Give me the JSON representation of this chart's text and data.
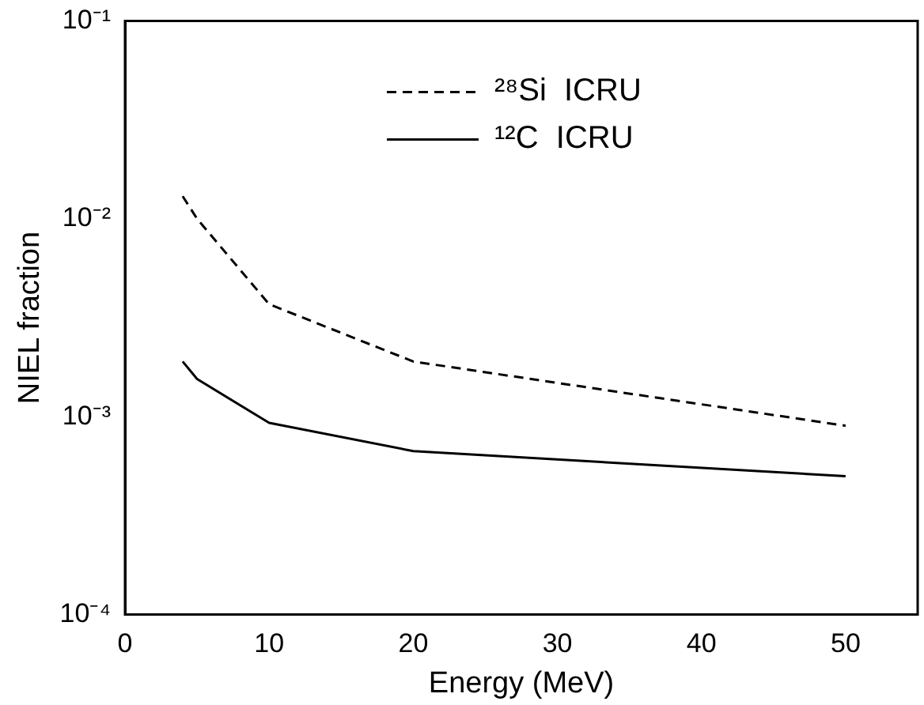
{
  "chart_data": {
    "type": "line",
    "xlabel": "Energy (MeV)",
    "ylabel": "NIEL fraction",
    "series": [
      {
        "name": "²⁸Si  ICRU",
        "color": "#000000",
        "line_style": "dashed",
        "x": [
          4,
          5,
          10,
          20,
          50
        ],
        "values": [
          0.013,
          0.01,
          0.0037,
          0.0019,
          0.0009
        ]
      },
      {
        "name": "¹²C  ICRU",
        "color": "#000000",
        "line_style": "solid",
        "x": [
          4,
          5,
          10,
          20,
          50
        ],
        "values": [
          0.0019,
          0.00155,
          0.00093,
          0.00067,
          0.0005
        ]
      }
    ],
    "xlim": [
      0,
      55
    ],
    "xticks": [
      0,
      10,
      20,
      30,
      40,
      50
    ],
    "ylim": [
      0.0001,
      0.1
    ],
    "yticks": [
      {
        "value": 0.0001,
        "label": "10⁻⁴"
      },
      {
        "value": 0.001,
        "label": "10⁻³"
      },
      {
        "value": 0.01,
        "label": "10⁻²"
      },
      {
        "value": 0.1,
        "label": "10⁻¹"
      }
    ],
    "log": "y",
    "grid": false,
    "legend": "top",
    "marker": "none"
  }
}
